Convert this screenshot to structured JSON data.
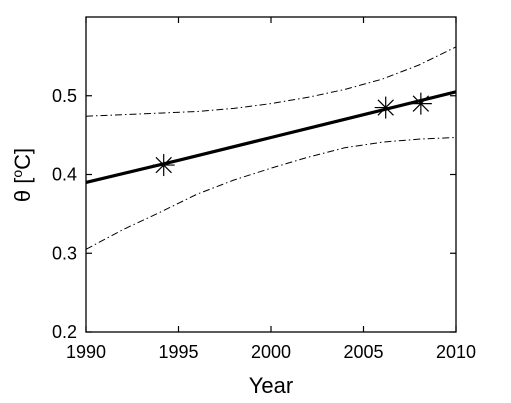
{
  "chart_data": {
    "type": "line",
    "title": "",
    "xlabel": "Year",
    "ylabel": "θ [oC]",
    "ylabel_parts": {
      "pre": "θ [",
      "sup": "o",
      "post": "C]"
    },
    "xlim": [
      1990,
      2010
    ],
    "ylim": [
      0.2,
      0.6
    ],
    "xticks": [
      1990,
      1995,
      2000,
      2005,
      2010
    ],
    "yticks": [
      0.2,
      0.3,
      0.4,
      0.5
    ],
    "ytick_labels": [
      "0.2",
      "0.3",
      "0.4",
      "0.5"
    ],
    "grid": false,
    "legend": "none",
    "series": [
      {
        "style": "solid-thick",
        "color": "#000000",
        "x": [
          1990,
          1995,
          2000,
          2005,
          2010
        ],
        "y": [
          0.39,
          0.418,
          0.447,
          0.476,
          0.505
        ]
      },
      {
        "style": "dash-dot",
        "color": "#000000",
        "x": [
          1990,
          1992,
          1994,
          1996,
          1998,
          2000,
          2002,
          2004,
          2006,
          2008,
          2010
        ],
        "y": [
          0.474,
          0.476,
          0.478,
          0.48,
          0.484,
          0.49,
          0.498,
          0.508,
          0.521,
          0.539,
          0.562
        ]
      },
      {
        "style": "dash-dot",
        "color": "#000000",
        "x": [
          1990,
          1992,
          1994,
          1996,
          1998,
          2000,
          2002,
          2004,
          2006,
          2008,
          2010
        ],
        "y": [
          0.305,
          0.33,
          0.352,
          0.375,
          0.393,
          0.408,
          0.422,
          0.434,
          0.441,
          0.445,
          0.447
        ]
      }
    ],
    "markers": {
      "symbol": "asterisk",
      "points": [
        {
          "x": 1994.2,
          "y": 0.412
        },
        {
          "x": 2006.2,
          "y": 0.485
        },
        {
          "x": 2008.1,
          "y": 0.49
        }
      ]
    }
  }
}
